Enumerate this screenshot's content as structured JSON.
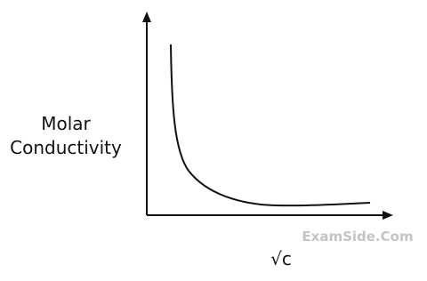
{
  "y_axis": {
    "label_lines": [
      "Molar",
      "Conductivity"
    ]
  },
  "x_axis": {
    "label": "√c"
  },
  "watermark": "ExamSide.Com"
}
